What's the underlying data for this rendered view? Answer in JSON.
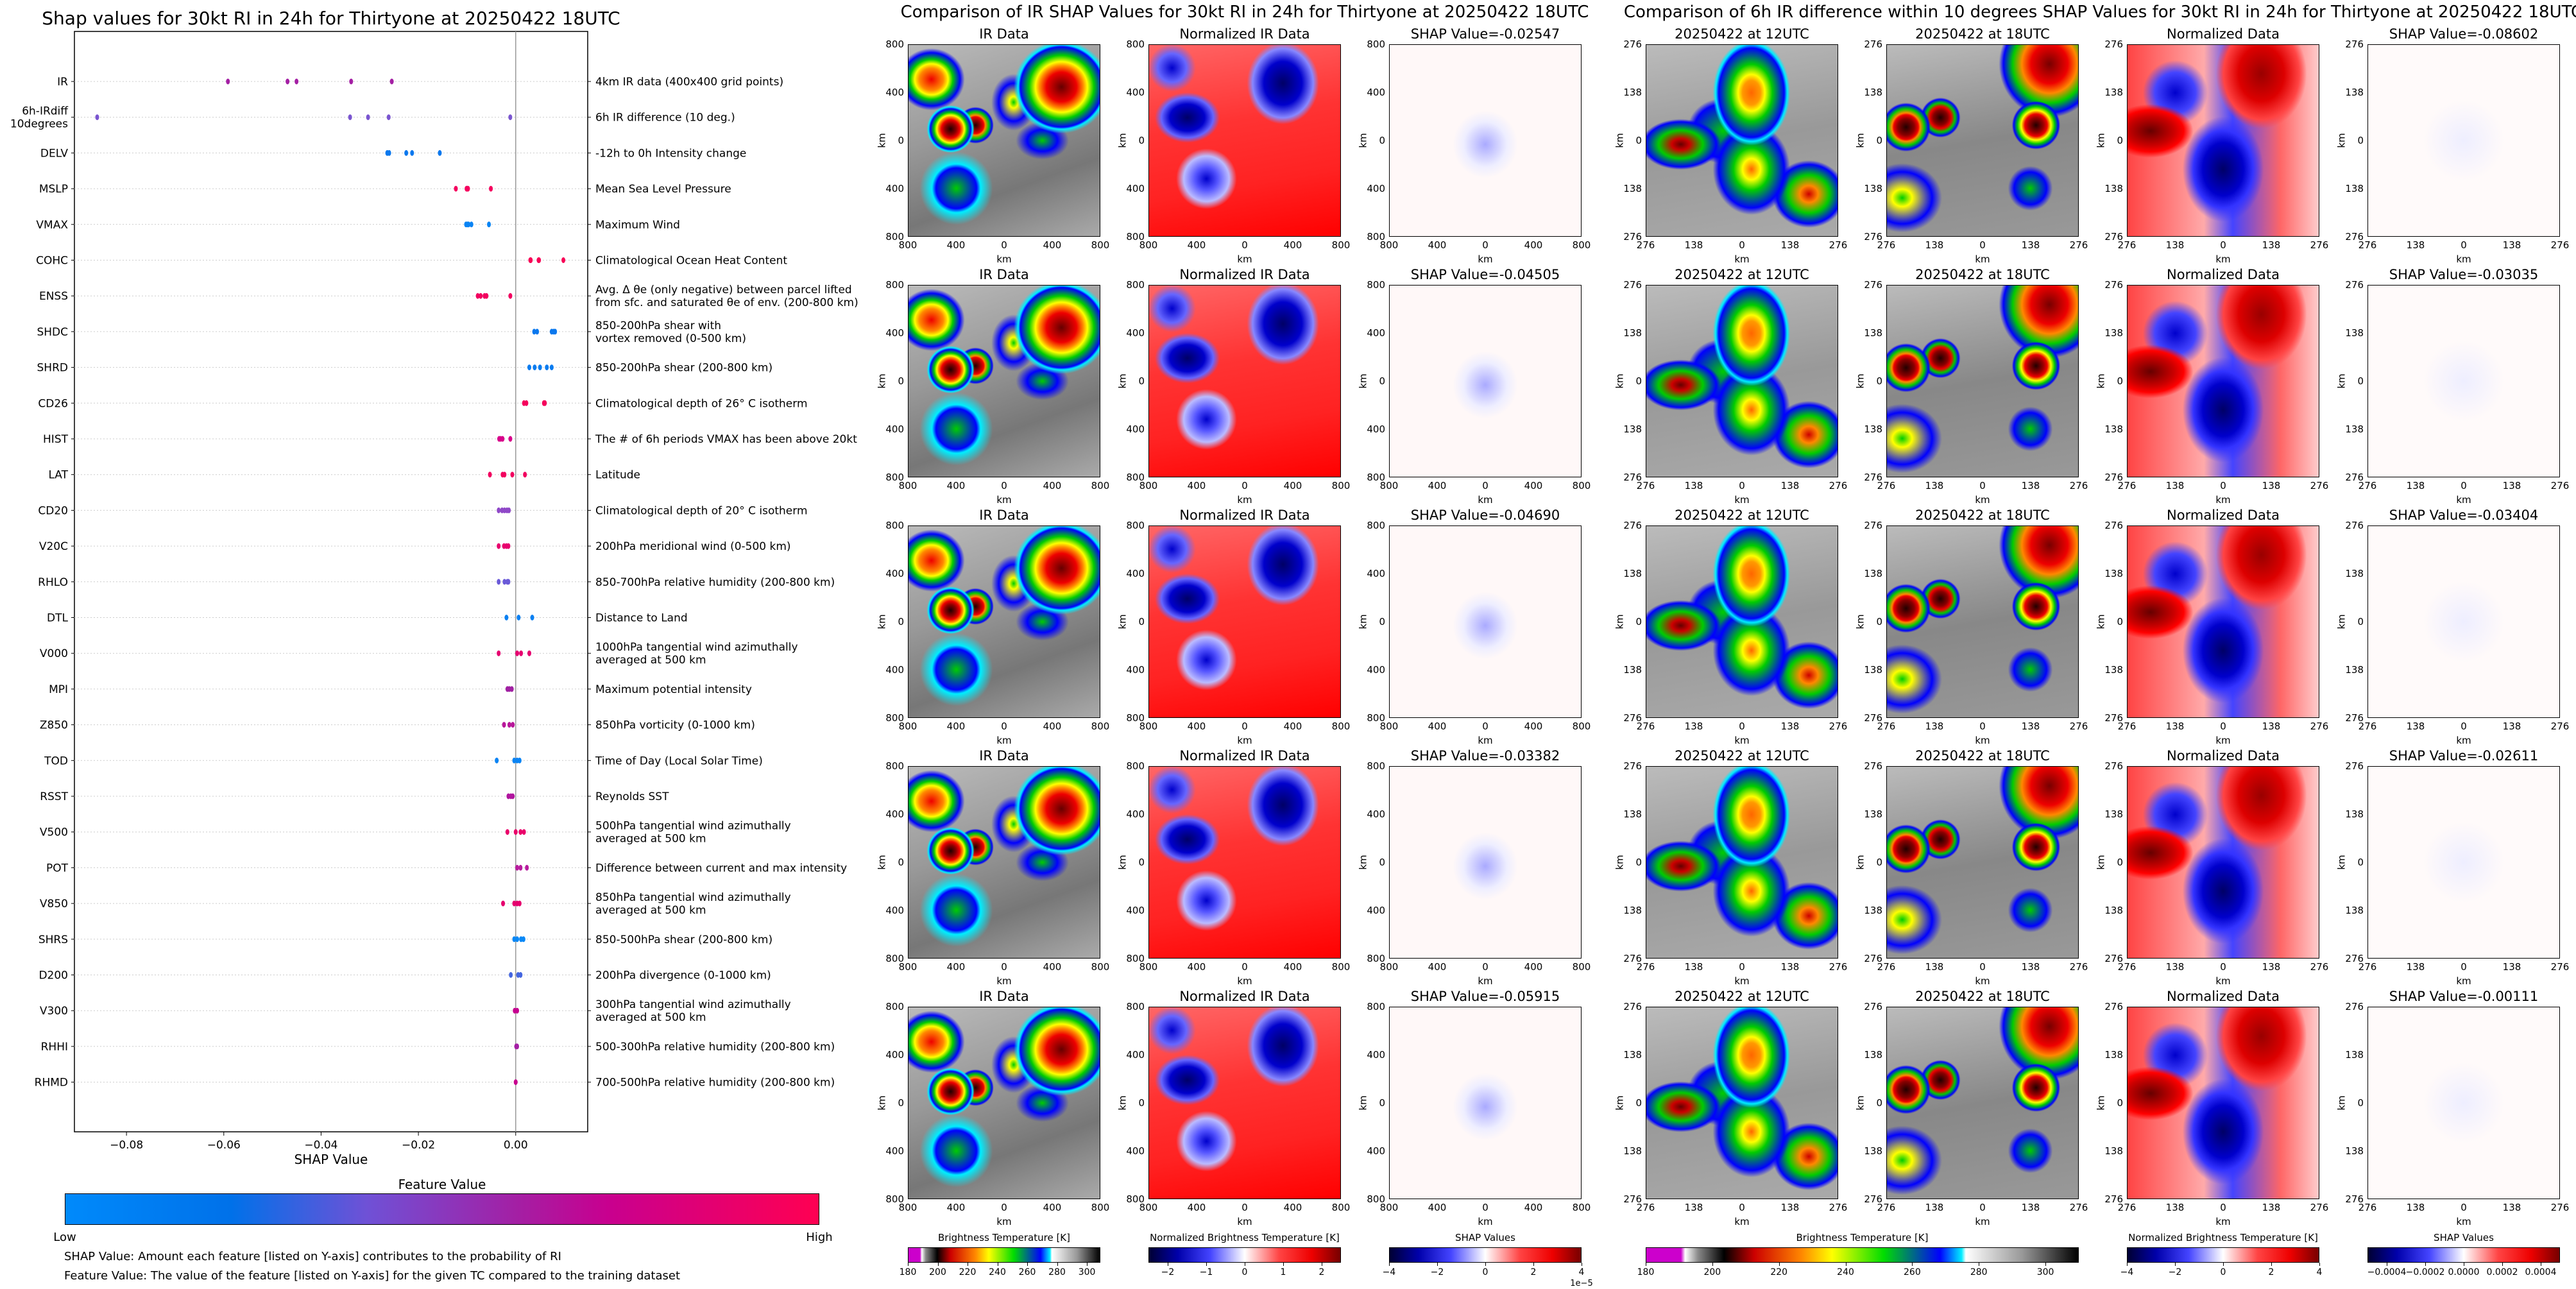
{
  "left_chart": {
    "title": "Shap values for 30kt RI in 24h for Thirtyone at 20250422 18UTC",
    "xlabel": "SHAP Value",
    "colorbar_title": "Feature Value",
    "colorbar_low": "Low",
    "colorbar_high": "High",
    "colorbar_colors": [
      "#008afb",
      "#0071e9",
      "#6f51d6",
      "#a41fa4",
      "#c8008f",
      "#ff0052"
    ],
    "note_shap": "SHAP Value: Amount each feature [listed on Y-axis] contributes to the probability of RI",
    "note_feature": "Feature Value: The value of the feature [listed on Y-axis] for the given TC compared to the training dataset"
  },
  "chart_data": {
    "type": "scatter",
    "title": "Shap values for 30kt RI in 24h for Thirtyone at 20250422 18UTC",
    "xlabel": "SHAP Value",
    "xlim": [
      -0.0907,
      0.0148
    ],
    "xticks": [
      -0.08,
      -0.06,
      -0.04,
      -0.02,
      0.0
    ],
    "xtick_labels": [
      "−0.08",
      "−0.06",
      "−0.04",
      "−0.02",
      "0.00"
    ],
    "grid": "horizontal dotted",
    "zero_line": true,
    "features": [
      {
        "label": "IR",
        "description": "4km IR data (400x400 grid points)",
        "color": "#a41fa4",
        "values": [
          -0.05915,
          -0.0469,
          -0.04505,
          -0.03382,
          -0.02547
        ]
      },
      {
        "label": "6h-IRdiff\n10degrees",
        "description": "6h IR difference (10 deg.)",
        "color": "#7a55d0",
        "values": [
          -0.08602,
          -0.03404,
          -0.03035,
          -0.02611,
          -0.00111
        ]
      },
      {
        "label": "DELV",
        "description": "-12h to 0h Intensity change",
        "color": "#0a78ee",
        "values": [
          -0.0264,
          -0.026,
          -0.0225,
          -0.0213,
          -0.0156
        ]
      },
      {
        "label": "MSLP",
        "description": "Mean Sea Level Pressure",
        "color": "#f5005e",
        "values": [
          -0.0123,
          -0.0101,
          -0.01,
          -0.0098,
          -0.0051
        ]
      },
      {
        "label": "VMAX",
        "description": "Maximum Wind",
        "color": "#0a84f4",
        "values": [
          -0.0102,
          -0.0099,
          -0.0097,
          -0.0091,
          -0.0055
        ]
      },
      {
        "label": "COHC",
        "description": "Climatological Ocean Heat Content",
        "color": "#f80056",
        "values": [
          0.003,
          0.0031,
          0.0047,
          0.0048,
          0.0098
        ]
      },
      {
        "label": "ENSS",
        "description": "Avg. Δ θe (only negative) between parcel lifted\nfrom sfc. and saturated θe of env. (200-800 km)",
        "color": "#f2005f",
        "values": [
          -0.0078,
          -0.0072,
          -0.0064,
          -0.006,
          -0.0011
        ]
      },
      {
        "label": "SHDC",
        "description": "850-200hPa shear with\nvortex removed (0-500 km)",
        "color": "#0a78ee",
        "values": [
          0.0038,
          0.0044,
          0.0074,
          0.0078,
          0.0081
        ]
      },
      {
        "label": "SHRD",
        "description": "850-200hPa shear (200-800 km)",
        "color": "#0a7cf0",
        "values": [
          0.0028,
          0.0039,
          0.005,
          0.0064,
          0.0074
        ]
      },
      {
        "label": "CD26",
        "description": "Climatological depth of 26° C isotherm",
        "color": "#f5005c",
        "values": [
          0.0017,
          0.0022,
          0.0058,
          0.006
        ]
      },
      {
        "label": "HIST",
        "description": "The # of 6h periods VMAX has been above 20kt",
        "color": "#d8008a",
        "values": [
          -0.0034,
          -0.0031,
          -0.0027,
          -0.0011
        ]
      },
      {
        "label": "LAT",
        "description": "Latitude",
        "color": "#f2005f",
        "values": [
          -0.0053,
          -0.0027,
          -0.0023,
          -0.0007,
          0.0019
        ]
      },
      {
        "label": "CD20",
        "description": "Climatological depth of 20° C isotherm",
        "color": "#8f48c8",
        "values": [
          -0.0035,
          -0.0028,
          -0.0023,
          -0.0018,
          -0.0014
        ]
      },
      {
        "label": "V20C",
        "description": "200hPa meridional wind (0-500 km)",
        "color": "#e8006e",
        "values": [
          -0.0035,
          -0.0024,
          -0.0019,
          -0.0015
        ]
      },
      {
        "label": "RHLO",
        "description": "850-700hPa relative humidity (200-800 km)",
        "color": "#6a5ad8",
        "values": [
          -0.0035,
          -0.0023,
          -0.0017,
          -0.0015
        ]
      },
      {
        "label": "DTL",
        "description": "Distance to Land",
        "color": "#0a80f2",
        "values": [
          -0.0019,
          0.0006,
          0.0034
        ]
      },
      {
        "label": "V000",
        "description": "1000hPa tangential wind azimuthally\naveraged at 500 km",
        "color": "#e60070",
        "values": [
          -0.0035,
          0.0003,
          0.0011,
          0.0028
        ]
      },
      {
        "label": "MPI",
        "description": "Maximum potential intensity",
        "color": "#a020a2",
        "values": [
          -0.0017,
          -0.0013,
          -0.0008
        ]
      },
      {
        "label": "Z850",
        "description": "850hPa vorticity (0-1000 km)",
        "color": "#b8189a",
        "values": [
          -0.0024,
          -0.0013,
          -0.0006
        ]
      },
      {
        "label": "TOD",
        "description": "Time of Day (Local Solar Time)",
        "color": "#0a84f4",
        "values": [
          -0.0039,
          -0.0003,
          0.0003,
          0.0008
        ]
      },
      {
        "label": "RSST",
        "description": "Reynolds SST",
        "color": "#b0159e",
        "values": [
          -0.0015,
          -0.001,
          -0.0006
        ]
      },
      {
        "label": "V500",
        "description": "500hPa tangential wind azimuthally\naveraged at 500 km",
        "color": "#ea006a",
        "values": [
          -0.0017,
          0.0,
          0.001,
          0.0017
        ]
      },
      {
        "label": "POT",
        "description": "Difference between current and max intensity",
        "color": "#b81c9e",
        "values": [
          0.0003,
          0.001,
          0.0023
        ]
      },
      {
        "label": "V850",
        "description": "850hPa tangential wind azimuthally\naveraged at 500 km",
        "color": "#e6006e",
        "values": [
          -0.0026,
          -0.0003,
          0.0003,
          0.0008
        ]
      },
      {
        "label": "SHRS",
        "description": "850-500hPa shear (200-800 km)",
        "color": "#0a88f6",
        "values": [
          -0.0003,
          0.0003,
          0.0011,
          0.0016
        ]
      },
      {
        "label": "D200",
        "description": "200hPa divergence (0-1000 km)",
        "color": "#4466e0",
        "values": [
          -0.001,
          0.0005,
          0.001
        ]
      },
      {
        "label": "V300",
        "description": "300hPa tangential wind azimuthally\naveraged at 500 km",
        "color": "#c60090",
        "values": [
          -0.0002,
          0.0003
        ]
      },
      {
        "label": "RHHI",
        "description": "500-300hPa relative humidity (200-800 km)",
        "color": "#a41fa4",
        "values": [
          0.0001,
          0.0003
        ]
      },
      {
        "label": "RHMD",
        "description": "700-500hPa relative humidity (200-800 km)",
        "color": "#c8008f",
        "values": [
          0.0
        ]
      }
    ]
  },
  "ir_section": {
    "title": "Comparison of IR SHAP Values for 30kt RI in 24h for Thirtyone at 20250422 18UTC",
    "panel_titles": [
      "IR Data",
      "Normalized IR Data"
    ],
    "shap_titles": [
      "SHAP Value=-0.02547",
      "SHAP Value=-0.04505",
      "SHAP Value=-0.04690",
      "SHAP Value=-0.03382",
      "SHAP Value=-0.05915"
    ],
    "tick_labels": [
      "800",
      "400",
      "0",
      "400",
      "800"
    ],
    "axis_label": "km",
    "colorbars": [
      {
        "title": "Brightness Temperature [K]",
        "range": [
          180,
          309
        ],
        "ticks": [
          180,
          200,
          220,
          240,
          260,
          280,
          300
        ],
        "tick_labels": [
          "180",
          "200",
          "220",
          "240",
          "260",
          "280",
          "300"
        ]
      },
      {
        "title": "Normalized Brightness Temperature [K]",
        "range": [
          -2.5,
          2.5
        ],
        "ticks": [
          -2,
          -1,
          0,
          1,
          2
        ],
        "tick_labels": [
          "−2",
          "−1",
          "0",
          "1",
          "2"
        ]
      },
      {
        "title": "SHAP Values",
        "range": [
          -4,
          4
        ],
        "ticks": [
          -4,
          -2,
          0,
          2,
          4
        ],
        "tick_labels": [
          "−4",
          "−2",
          "0",
          "2",
          "4"
        ],
        "offset_label": "1e−5"
      }
    ]
  },
  "diff_section": {
    "title": "Comparison of 6h IR difference within 10 degrees SHAP Values for 30kt RI in 24h for Thirtyone at 20250422 18UTC",
    "panel_titles": [
      "20250422 at 12UTC",
      "20250422 at 18UTC",
      "Normalized Data"
    ],
    "shap_titles": [
      "SHAP Value=-0.08602",
      "SHAP Value=-0.03035",
      "SHAP Value=-0.03404",
      "SHAP Value=-0.02611",
      "SHAP Value=-0.00111"
    ],
    "tick_labels": [
      "276",
      "138",
      "0",
      "138",
      "276"
    ],
    "axis_label": "km",
    "colorbars": [
      {
        "title": "Brightness Temperature [K]",
        "range": [
          180,
          310
        ],
        "ticks": [
          180,
          200,
          220,
          240,
          260,
          280,
          300
        ],
        "tick_labels": [
          "180",
          "200",
          "220",
          "240",
          "260",
          "280",
          "300"
        ]
      },
      {
        "title": "Normalized Brightness Temperature [K]",
        "range": [
          -4,
          4
        ],
        "ticks": [
          -4,
          -2,
          0,
          2,
          4
        ],
        "tick_labels": [
          "−4",
          "−2",
          "0",
          "2",
          "4"
        ]
      },
      {
        "title": "SHAP Values",
        "range": [
          -0.0005,
          0.0005
        ],
        "ticks": [
          -0.0004,
          -0.0002,
          0,
          0.0002,
          0.0004
        ],
        "tick_labels": [
          "−0.0004",
          "−0.0002",
          "0.0000",
          "0.0002",
          "0.0004"
        ]
      }
    ]
  }
}
